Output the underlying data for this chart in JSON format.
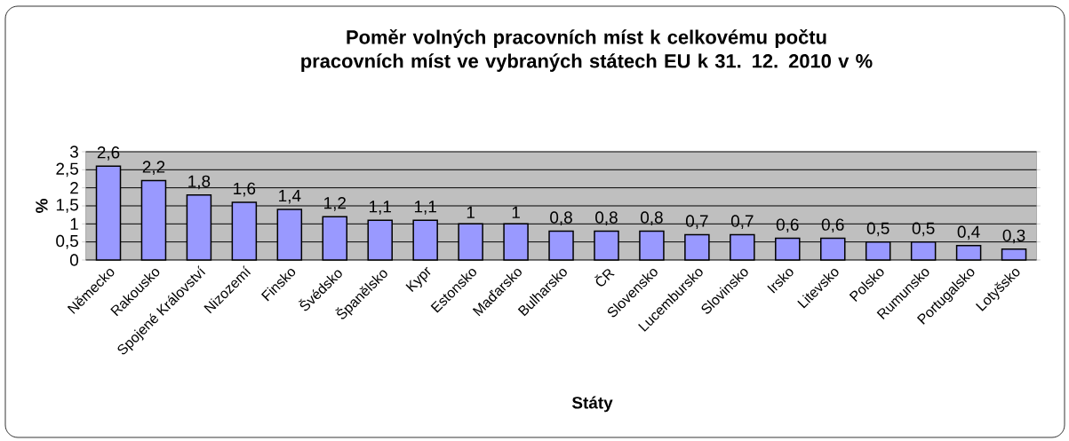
{
  "chart_data": {
    "type": "bar",
    "title": "Poměr volných pracovních míst k celkovému počtu pracovních míst ve vybraných státech EU k 31. 12. 2010 v %",
    "xlabel": "Státy",
    "ylabel": "%",
    "categories": [
      "Německo",
      "Rakousko",
      "Spojené Království",
      "Nizozemí",
      "Finsko",
      "Švédsko",
      "Španělsko",
      "Kypr",
      "Estonsko",
      "Maďarsko",
      "Bulharsko",
      "ČR",
      "Slovensko",
      "Lucembursko",
      "Slovinsko",
      "Irsko",
      "Litevsko",
      "Polsko",
      "Rumunsko",
      "Portugalsko",
      "Lotyšsko"
    ],
    "values": [
      2.6,
      2.2,
      1.8,
      1.6,
      1.4,
      1.2,
      1.1,
      1.1,
      1,
      1,
      0.8,
      0.8,
      0.8,
      0.7,
      0.7,
      0.6,
      0.6,
      0.5,
      0.5,
      0.4,
      0.3
    ],
    "value_labels": [
      "2,6",
      "2,2",
      "1,8",
      "1,6",
      "1,4",
      "1,2",
      "1,1",
      "1,1",
      "1",
      "1",
      "0,8",
      "0,8",
      "0,8",
      "0,7",
      "0,7",
      "0,6",
      "0,6",
      "0,5",
      "0,5",
      "0,4",
      "0,3"
    ],
    "color": "#9999ff",
    "ylim": [
      0,
      3
    ],
    "yticks": [
      0,
      {
        "value": 0.5,
        "label": "0,5"
      },
      1,
      {
        "value": 1.5,
        "label": "1,5"
      },
      2,
      {
        "value": 2.5,
        "label": "2,5"
      },
      3
    ],
    "grid": "y"
  }
}
